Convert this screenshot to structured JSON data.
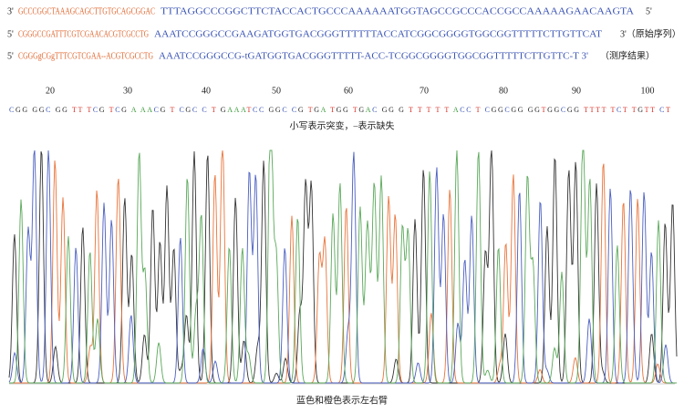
{
  "sequences": [
    {
      "start": "3'",
      "left_arm": "GCCCGGCTAAAGCAGCTTGTGCAGCGGAC",
      "right_arm": "TTTAGGCCCGGCTTCTACCACTGCCCAAAAAATGGTAGCCGCCCACCGCCAAAAAGAACAAGTA",
      "end": "5'"
    },
    {
      "start": "5'",
      "left_arm": "CGGGCCGATTTCGTCGAACACGTCGCCTG",
      "right_arm": "AAATCCGGGCCGAAGATGGTGACGGGTTTTTTACCATCGGCGGGGTGGCGGTTTTTCTTGTTCAT",
      "end": "3'（原始序列）"
    },
    {
      "start": "5'",
      "left_arm": "CGGGgCGgTTTCGTCGAA--ACGTCGCCTG",
      "right_arm": "AAATCCGGGCCG-tGATGGTGACGGGTTTTT-ACC-TCGGCGGGGTGGCGGTTTTTCTTGTTC-T 3'",
      "end": "（测序结果）"
    }
  ],
  "ruler": [
    "20",
    "30",
    "40",
    "50",
    "60",
    "70",
    "80",
    "90",
    "100"
  ],
  "base_calls": "CGG GGC GG TT  TCG TCG A AACG T CGC C T GAAATCC GGC CG TGA TGG TGAC GG G T T T T T ACC T CGGCGG GGTGGCGG TTTT TCT TGTT CT",
  "legend_note": "小写表示突变，–表示缺失",
  "caption": "蓝色和橙色表示左右臂"
}
